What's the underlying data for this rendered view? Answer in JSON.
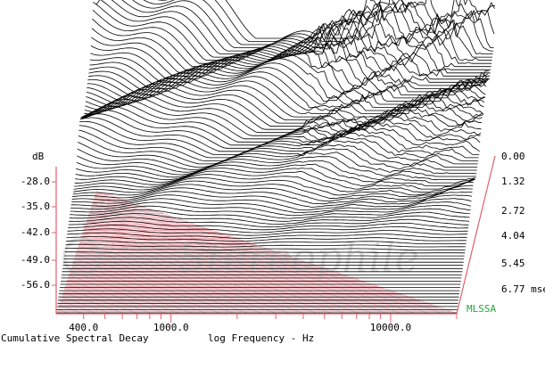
{
  "chart_data": {
    "type": "area",
    "title": "Cumulative Spectral Decay",
    "xlabel": "log Frequency - Hz",
    "ylabel": "dB",
    "zlabel": "msec",
    "x_scale": "log",
    "x_ticks": [
      "400.0",
      "1000.0",
      "10000.0"
    ],
    "y_ticks": [
      "-28.0",
      "-35.0",
      "-42.0",
      "-49.0",
      "-56.0"
    ],
    "z_ticks": [
      "0.00",
      "1.32",
      "2.72",
      "4.04",
      "5.45",
      "6.77 msec"
    ],
    "watermark": "Stereophile",
    "software": "MLSSA",
    "colors": {
      "traces": "#000000",
      "floor": "#e0606b",
      "software": "#22a83a"
    }
  }
}
